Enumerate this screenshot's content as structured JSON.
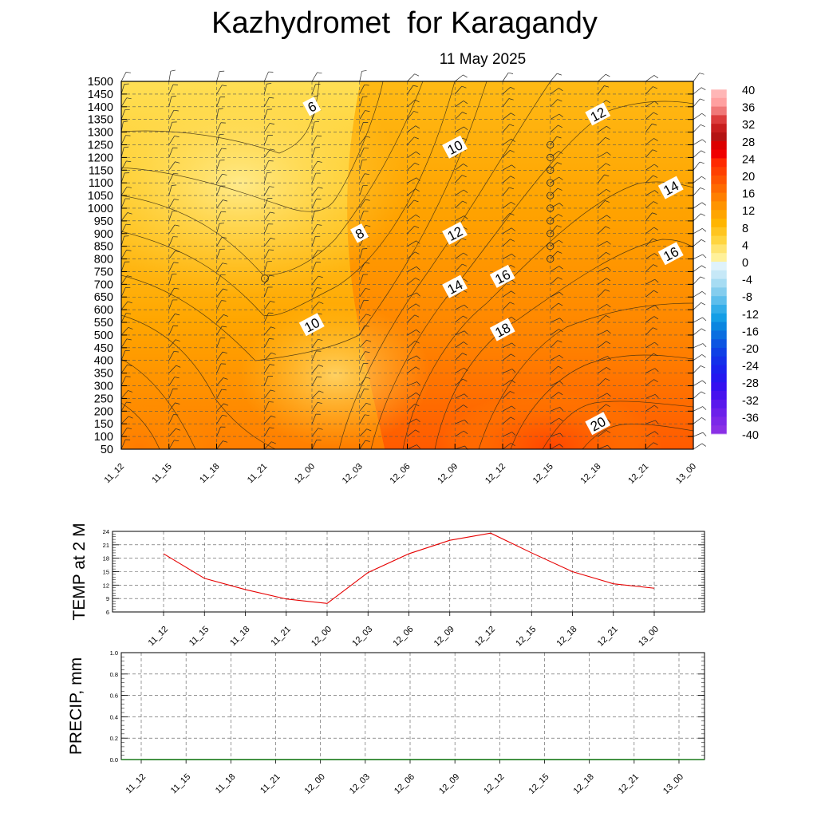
{
  "title": "Kazhydromet  for Karagandy",
  "subtitle": "11 May 2025",
  "colors": {
    "warm_light": "#ffe680",
    "warm_mid": "#ffc21a",
    "warm_orange": "#ff9a00",
    "warm_deep": "#ff5a00",
    "temp_line": "#e60000",
    "grid": "#555555"
  },
  "chart_data": [
    {
      "type": "heatmap",
      "name": "cross-section",
      "x": [
        "11_12",
        "11_15",
        "11_18",
        "11_21",
        "12_00",
        "12_03",
        "12_06",
        "12_09",
        "12_12",
        "12_15",
        "12_18",
        "12_21",
        "13_00"
      ],
      "y_ticks": [
        50,
        100,
        150,
        200,
        250,
        300,
        350,
        400,
        450,
        500,
        550,
        600,
        650,
        700,
        750,
        800,
        850,
        900,
        950,
        1000,
        1050,
        1100,
        1150,
        1200,
        1250,
        1300,
        1350,
        1400,
        1450,
        1500
      ],
      "ylim": [
        50,
        1500
      ],
      "contour_labels": [
        {
          "text": "6",
          "x": "12_00",
          "y": 1400
        },
        {
          "text": "8",
          "x": "12_03",
          "y": 900
        },
        {
          "text": "10",
          "x": "12_00",
          "y": 540
        },
        {
          "text": "10",
          "x": "12_09",
          "y": 1240
        },
        {
          "text": "12",
          "x": "12_09",
          "y": 900
        },
        {
          "text": "12",
          "x": "12_18",
          "y": 1370
        },
        {
          "text": "14",
          "x": "12_09",
          "y": 690
        },
        {
          "text": "14",
          "x": "13_00",
          "y": 1080
        },
        {
          "text": "16",
          "x": "12_12",
          "y": 730
        },
        {
          "text": "16",
          "x": "13_00",
          "y": 820
        },
        {
          "text": "18",
          "x": "12_12",
          "y": 520
        },
        {
          "text": "20",
          "x": "12_18",
          "y": 150
        }
      ],
      "colorbar": {
        "labels": [
          "40",
          "36",
          "32",
          "28",
          "24",
          "20",
          "16",
          "12",
          "8",
          "4",
          "0",
          "-4",
          "-8",
          "-12",
          "-16",
          "-20",
          "-24",
          "-28",
          "-32",
          "-36",
          "-40"
        ]
      },
      "wind_barbs": true,
      "grid": true
    },
    {
      "type": "line",
      "ylabel": "TEMP at 2 M",
      "x": [
        "11_12",
        "11_15",
        "11_18",
        "11_21",
        "12_00",
        "12_03",
        "12_06",
        "12_09",
        "12_12",
        "12_15",
        "12_18",
        "12_21",
        "13_00"
      ],
      "y_ticks": [
        "6",
        "9",
        "12",
        "15",
        "18",
        "21",
        "24"
      ],
      "ylim": [
        6,
        24
      ],
      "series": [
        {
          "values": [
            19,
            13.5,
            11,
            8.9,
            7.9,
            14.8,
            19,
            22,
            23.6,
            19.2,
            15,
            12.3,
            11.3
          ]
        }
      ],
      "grid": true
    },
    {
      "type": "line",
      "ylabel": "PRECIP, mm",
      "x": [
        "11_12",
        "11_15",
        "11_18",
        "11_21",
        "12_00",
        "12_03",
        "12_06",
        "12_09",
        "12_12",
        "12_15",
        "12_18",
        "12_21",
        "13_00"
      ],
      "y_ticks": [
        "0.0",
        "0.2",
        "0.4",
        "0.6",
        "0.8",
        "1.0"
      ],
      "ylim": [
        0,
        1
      ],
      "series": [
        {
          "values": [
            0,
            0,
            0,
            0,
            0,
            0,
            0,
            0,
            0,
            0,
            0,
            0,
            0
          ]
        }
      ],
      "grid": true
    }
  ]
}
